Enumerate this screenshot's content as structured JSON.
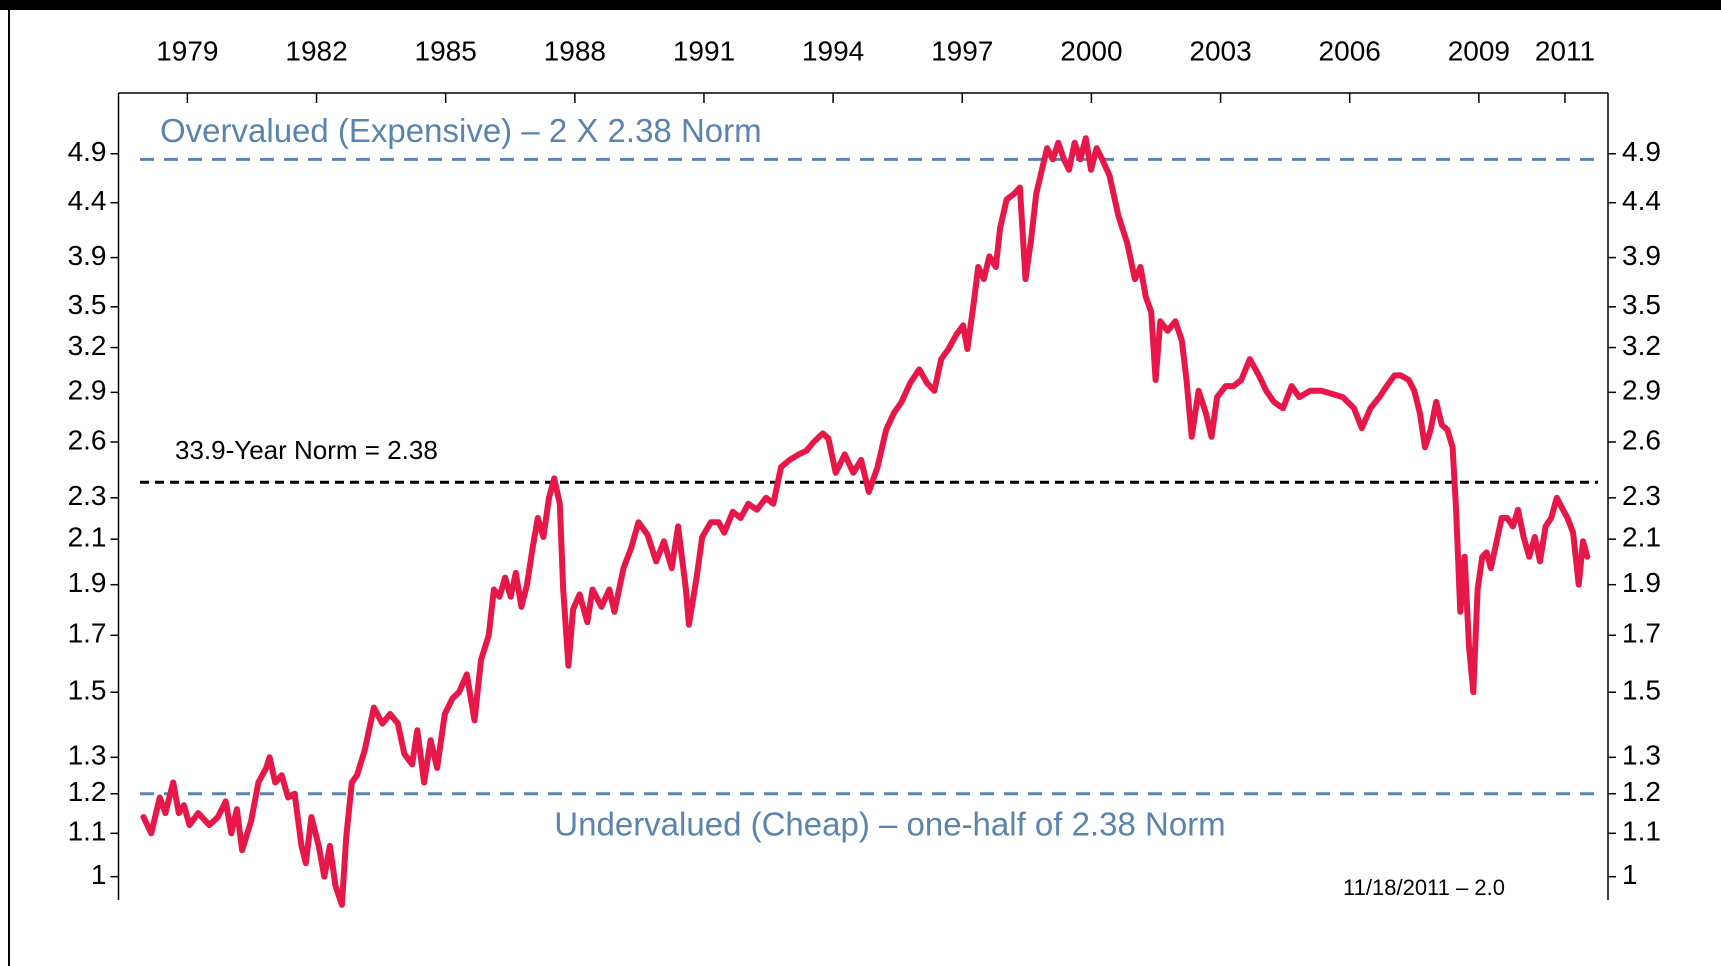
{
  "chart_data": {
    "type": "line",
    "color": "#e8174a",
    "log_scale": true,
    "xlim": [
      1977.4,
      2012.0
    ],
    "xticks": [
      1979,
      1982,
      1985,
      1988,
      1991,
      1994,
      1997,
      2000,
      2003,
      2006,
      2009,
      2011
    ],
    "ylim": [
      0.95,
      5.6
    ],
    "yticks": [
      1.0,
      1.1,
      1.2,
      1.3,
      1.5,
      1.7,
      1.9,
      2.1,
      2.3,
      2.6,
      2.9,
      3.2,
      3.5,
      3.9,
      4.4,
      4.9
    ],
    "reference_lines": [
      {
        "label": "Overvalued (Expensive) – 2 X 2.38 Norm",
        "value": 4.84,
        "color": "#5b83ad"
      },
      {
        "label": "33.9-Year Norm = 2.38",
        "value": 2.38,
        "color": "#000000"
      },
      {
        "label": "Undervalued (Cheap) – one-half of 2.38 Norm",
        "value": 1.2,
        "color": "#5b83ad"
      }
    ],
    "annotation": "11/18/2011 – 2.0",
    "x": [
      1977.98,
      1978.16,
      1978.36,
      1978.49,
      1978.67,
      1978.8,
      1978.92,
      1979.05,
      1979.25,
      1979.51,
      1979.71,
      1979.89,
      1980.02,
      1980.15,
      1980.27,
      1980.48,
      1980.65,
      1980.83,
      1980.91,
      1981.04,
      1981.19,
      1981.34,
      1981.49,
      1981.65,
      1981.75,
      1981.88,
      1982.05,
      1982.18,
      1982.31,
      1982.44,
      1982.59,
      1982.69,
      1982.82,
      1982.94,
      1983.12,
      1983.33,
      1983.53,
      1983.71,
      1983.89,
      1984.04,
      1984.22,
      1984.34,
      1984.5,
      1984.65,
      1984.8,
      1984.98,
      1985.16,
      1985.31,
      1985.49,
      1985.67,
      1985.82,
      1986.0,
      1986.12,
      1986.25,
      1986.38,
      1986.51,
      1986.63,
      1986.76,
      1986.89,
      1987.02,
      1987.14,
      1987.27,
      1987.4,
      1987.52,
      1987.65,
      1987.73,
      1987.85,
      1987.96,
      1988.11,
      1988.29,
      1988.41,
      1988.62,
      1988.8,
      1988.92,
      1989.13,
      1989.31,
      1989.48,
      1989.69,
      1989.89,
      1990.07,
      1990.25,
      1990.4,
      1990.58,
      1990.65,
      1990.83,
      1990.96,
      1991.16,
      1991.34,
      1991.47,
      1991.67,
      1991.85,
      1992.03,
      1992.23,
      1992.44,
      1992.61,
      1992.79,
      1992.99,
      1993.2,
      1993.38,
      1993.55,
      1993.76,
      1993.89,
      1994.06,
      1994.27,
      1994.47,
      1994.65,
      1994.83,
      1995.03,
      1995.23,
      1995.41,
      1995.59,
      1995.79,
      1996.0,
      1996.18,
      1996.35,
      1996.51,
      1996.68,
      1996.86,
      1997.02,
      1997.12,
      1997.27,
      1997.37,
      1997.5,
      1997.63,
      1997.78,
      1997.88,
      1998.03,
      1998.21,
      1998.34,
      1998.47,
      1998.59,
      1998.72,
      1998.85,
      1998.97,
      1999.1,
      1999.23,
      1999.36,
      1999.48,
      1999.61,
      1999.74,
      1999.87,
      1999.99,
      2000.12,
      2000.25,
      2000.42,
      2000.63,
      2000.83,
      2001.01,
      2001.14,
      2001.26,
      2001.39,
      2001.49,
      2001.6,
      2001.77,
      2001.95,
      2002.1,
      2002.21,
      2002.33,
      2002.49,
      2002.66,
      2002.79,
      2002.92,
      2003.12,
      2003.3,
      2003.48,
      2003.68,
      2003.89,
      2004.06,
      2004.24,
      2004.45,
      2004.65,
      2004.83,
      2005.08,
      2005.34,
      2005.59,
      2005.84,
      2006.1,
      2006.28,
      2006.48,
      2006.69,
      2006.86,
      2007.04,
      2007.19,
      2007.37,
      2007.5,
      2007.63,
      2007.75,
      2007.88,
      2008.01,
      2008.14,
      2008.27,
      2008.39,
      2008.47,
      2008.57,
      2008.67,
      2008.77,
      2008.87,
      2008.97,
      2009.08,
      2009.18,
      2009.28,
      2009.38,
      2009.53,
      2009.66,
      2009.79,
      2009.91,
      2010.04,
      2010.17,
      2010.3,
      2010.42,
      2010.55,
      2010.68,
      2010.81,
      2010.93,
      2011.06,
      2011.19,
      2011.32,
      2011.42,
      2011.52
    ],
    "values": [
      1.14,
      1.1,
      1.19,
      1.15,
      1.23,
      1.15,
      1.17,
      1.12,
      1.15,
      1.12,
      1.14,
      1.18,
      1.1,
      1.16,
      1.06,
      1.13,
      1.23,
      1.27,
      1.3,
      1.23,
      1.25,
      1.19,
      1.2,
      1.07,
      1.03,
      1.14,
      1.07,
      1.0,
      1.07,
      0.98,
      0.94,
      1.09,
      1.23,
      1.25,
      1.32,
      1.45,
      1.4,
      1.43,
      1.4,
      1.31,
      1.28,
      1.38,
      1.23,
      1.35,
      1.27,
      1.43,
      1.48,
      1.5,
      1.56,
      1.41,
      1.61,
      1.7,
      1.88,
      1.85,
      1.93,
      1.85,
      1.95,
      1.81,
      1.9,
      2.06,
      2.2,
      2.11,
      2.3,
      2.4,
      2.27,
      1.88,
      1.59,
      1.8,
      1.86,
      1.75,
      1.88,
      1.81,
      1.88,
      1.79,
      1.97,
      2.06,
      2.18,
      2.12,
      2.0,
      2.09,
      1.97,
      2.16,
      1.88,
      1.74,
      1.93,
      2.11,
      2.18,
      2.18,
      2.13,
      2.23,
      2.2,
      2.27,
      2.24,
      2.3,
      2.27,
      2.46,
      2.5,
      2.53,
      2.55,
      2.6,
      2.65,
      2.62,
      2.43,
      2.53,
      2.43,
      2.5,
      2.33,
      2.46,
      2.67,
      2.77,
      2.84,
      2.96,
      3.05,
      2.96,
      2.91,
      3.12,
      3.19,
      3.29,
      3.36,
      3.19,
      3.54,
      3.82,
      3.72,
      3.91,
      3.82,
      4.16,
      4.43,
      4.49,
      4.55,
      3.72,
      4.03,
      4.49,
      4.73,
      4.96,
      4.84,
      5.02,
      4.84,
      4.73,
      5.02,
      4.84,
      5.07,
      4.73,
      4.96,
      4.84,
      4.67,
      4.27,
      4.03,
      3.72,
      3.82,
      3.58,
      3.46,
      2.98,
      3.39,
      3.32,
      3.39,
      3.25,
      2.98,
      2.63,
      2.91,
      2.77,
      2.63,
      2.87,
      2.94,
      2.94,
      2.98,
      3.12,
      3.01,
      2.91,
      2.84,
      2.8,
      2.94,
      2.87,
      2.91,
      2.91,
      2.89,
      2.87,
      2.8,
      2.68,
      2.8,
      2.87,
      2.94,
      3.01,
      3.01,
      2.98,
      2.91,
      2.77,
      2.57,
      2.67,
      2.84,
      2.7,
      2.67,
      2.57,
      2.25,
      1.79,
      2.02,
      1.66,
      1.5,
      1.88,
      2.02,
      2.04,
      1.97,
      2.06,
      2.2,
      2.2,
      2.16,
      2.24,
      2.11,
      2.02,
      2.11,
      2.0,
      2.16,
      2.2,
      2.3,
      2.25,
      2.2,
      2.13,
      1.9,
      2.09,
      2.02
    ]
  }
}
